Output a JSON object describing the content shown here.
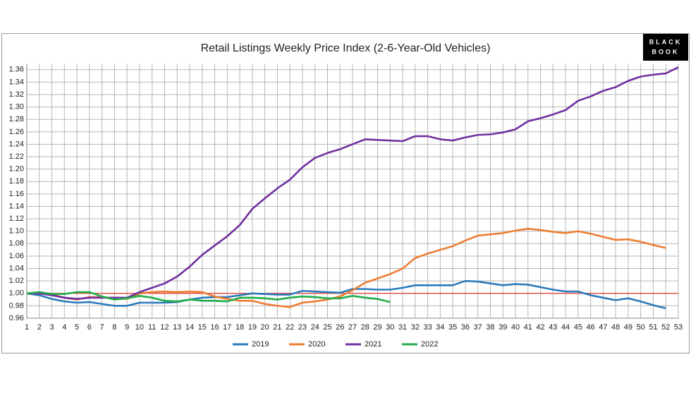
{
  "chart_data": {
    "type": "line",
    "title": "Retail Listings Weekly Price Index (2-6-Year-Old Vehicles)",
    "logo": [
      "BLACK",
      "BOOK"
    ],
    "categories": [
      "1",
      "2",
      "3",
      "4",
      "5",
      "6",
      "7",
      "8",
      "9",
      "10",
      "11",
      "12",
      "13",
      "14",
      "15",
      "16",
      "17",
      "18",
      "19",
      "20",
      "21",
      "22",
      "23",
      "24",
      "25",
      "26",
      "27",
      "28",
      "29",
      "30",
      "31",
      "32",
      "33",
      "34",
      "35",
      "36",
      "37",
      "38",
      "39",
      "40",
      "41",
      "42",
      "43",
      "44",
      "45",
      "46",
      "47",
      "48",
      "49",
      "50",
      "51",
      "52",
      "53"
    ],
    "series": [
      {
        "name": "2019",
        "color": "#2b7bbd",
        "values": [
          1.0,
          0.997,
          0.991,
          0.987,
          0.985,
          0.986,
          0.983,
          0.98,
          0.98,
          0.985,
          0.985,
          0.985,
          0.986,
          0.99,
          0.993,
          0.994,
          0.994,
          0.997,
          1.0,
          0.999,
          0.998,
          0.998,
          1.004,
          1.003,
          1.002,
          1.001,
          1.007,
          1.007,
          1.006,
          1.006,
          1.009,
          1.013,
          1.013,
          1.013,
          1.013,
          1.02,
          1.019,
          1.016,
          1.013,
          1.015,
          1.014,
          1.01,
          1.006,
          1.003,
          1.003,
          0.997,
          0.993,
          0.989,
          0.992,
          0.987,
          0.981,
          0.976,
          null
        ]
      },
      {
        "name": "2020",
        "color": "#ee7d31",
        "values": [
          1.0,
          1.001,
          0.998,
          0.993,
          0.99,
          0.994,
          0.994,
          0.992,
          0.991,
          1.0,
          1.002,
          1.003,
          1.002,
          1.003,
          1.002,
          0.995,
          0.991,
          0.988,
          0.988,
          0.983,
          0.98,
          0.978,
          0.985,
          0.987,
          0.99,
          0.995,
          1.005,
          1.017,
          1.024,
          1.031,
          1.04,
          1.057,
          1.064,
          1.07,
          1.076,
          1.085,
          1.093,
          1.095,
          1.097,
          1.101,
          1.104,
          1.102,
          1.099,
          1.097,
          1.1,
          1.096,
          1.091,
          1.086,
          1.087,
          1.083,
          1.078,
          1.073,
          null
        ]
      },
      {
        "name": "2021",
        "color": "#7030a0",
        "values": [
          1.0,
          1.0,
          0.997,
          0.993,
          0.991,
          0.993,
          0.993,
          0.993,
          0.993,
          1.002,
          1.009,
          1.016,
          1.027,
          1.043,
          1.062,
          1.077,
          1.092,
          1.11,
          1.136,
          1.153,
          1.169,
          1.183,
          1.203,
          1.218,
          1.226,
          1.232,
          1.24,
          1.248,
          1.247,
          1.246,
          1.245,
          1.253,
          1.253,
          1.248,
          1.246,
          1.251,
          1.255,
          1.256,
          1.259,
          1.264,
          1.277,
          1.282,
          1.288,
          1.295,
          1.31,
          1.317,
          1.326,
          1.332,
          1.342,
          1.349,
          1.352,
          1.354,
          1.364
        ]
      },
      {
        "name": "2022",
        "color": "#22ad4a",
        "values": [
          1.0,
          1.002,
          0.999,
          0.999,
          1.002,
          1.002,
          0.995,
          0.99,
          0.992,
          0.996,
          0.993,
          0.988,
          0.987,
          0.99,
          0.988,
          0.988,
          0.987,
          0.993,
          0.993,
          0.992,
          0.99,
          0.993,
          0.995,
          0.994,
          0.992,
          0.992,
          0.996,
          0.993,
          0.991,
          0.986,
          null,
          null,
          null,
          null,
          null,
          null,
          null,
          null,
          null,
          null,
          null,
          null,
          null,
          null,
          null,
          null,
          null,
          null,
          null,
          null,
          null,
          null,
          null
        ]
      }
    ],
    "ylim": [
      0.96,
      1.37
    ],
    "yticks": [
      0.96,
      0.98,
      {
        "value": 1.0,
        "label": "1.00"
      },
      1.02,
      1.04,
      1.06,
      1.08,
      {
        "value": 1.1,
        "label": "1.10"
      },
      1.12,
      1.14,
      1.16,
      1.18,
      {
        "value": 1.2,
        "label": "1.20"
      },
      1.22,
      1.24,
      1.26,
      1.28,
      {
        "value": 1.3,
        "label": "1.30"
      },
      1.32,
      1.34,
      1.36
    ],
    "reference_line": {
      "value": 1,
      "color": "#e53b30"
    },
    "grid": true,
    "legend": "bottom"
  }
}
